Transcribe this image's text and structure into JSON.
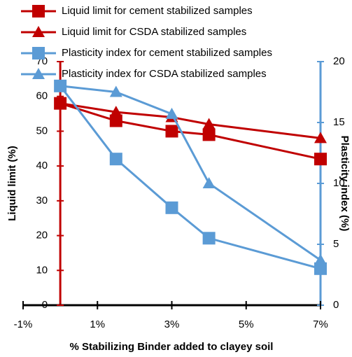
{
  "chart_data": {
    "type": "line",
    "x_label": "% Stabilizing Binder added to  clayey soil",
    "y_label": "Liquid limit (%)",
    "y2_label": "Plasticity index (%)",
    "x": [
      0,
      1.5,
      3,
      4,
      7
    ],
    "xlim": [
      -1,
      7
    ],
    "xticks": [
      {
        "value": -1,
        "label": "-1%"
      },
      {
        "value": 1,
        "label": "1%"
      },
      {
        "value": 3,
        "label": "3%"
      },
      {
        "value": 5,
        "label": "5%"
      },
      {
        "value": 7,
        "label": "7%"
      }
    ],
    "ylim": [
      0,
      70
    ],
    "yticks": [
      0,
      10,
      20,
      30,
      40,
      50,
      60,
      70
    ],
    "y2lim": [
      0,
      20
    ],
    "y2ticks": [
      0,
      5,
      10,
      15,
      20
    ],
    "legend": "top-left",
    "series": [
      {
        "name": "Liquid limit for cement stabilized samples",
        "color": "#c00000",
        "marker": "square",
        "values": [
          58,
          53,
          50,
          49,
          42
        ]
      },
      {
        "name": "Liquid limit for CSDA stabilized samples",
        "color": "#c00000",
        "marker": "triangle",
        "values": [
          58,
          55.5,
          54,
          52,
          48
        ]
      },
      {
        "name": "Plasticity index for cement stabilized samples",
        "color": "#5b9bd5",
        "marker": "square",
        "axis": "y2",
        "values": [
          18,
          12,
          8,
          5.5,
          3
        ]
      },
      {
        "name": "Plasticity index for CSDA stabilized samples",
        "color": "#5b9bd5",
        "marker": "triangle",
        "axis": "y2",
        "values": [
          18,
          17.5,
          15.7,
          10,
          3.7
        ]
      }
    ]
  }
}
